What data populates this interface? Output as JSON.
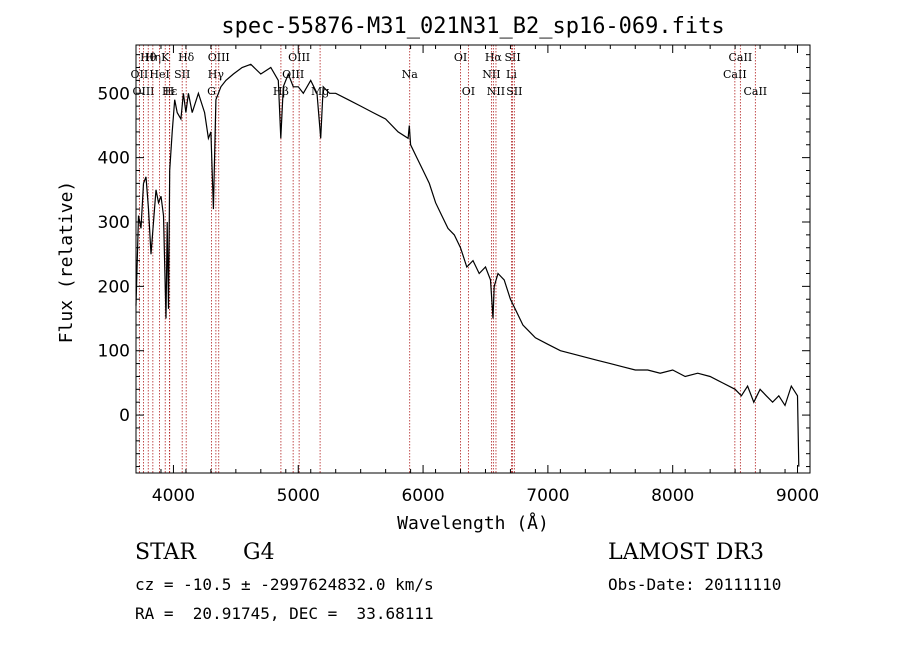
{
  "chart_data": {
    "type": "line",
    "title": "spec-55876-M31_021N31_B2_sp16-069.fits",
    "xlabel": "Wavelength (Å)",
    "ylabel": "Flux (relative)",
    "xlim": [
      3700,
      9100
    ],
    "ylim": [
      -90,
      575
    ],
    "xticks": [
      4000,
      5000,
      6000,
      7000,
      8000,
      9000
    ],
    "yticks": [
      0,
      100,
      200,
      300,
      400,
      500
    ],
    "grid": false,
    "line_color": "#000000",
    "marker_color": "#b22222",
    "series": [
      {
        "x": [
          3700,
          3720,
          3740,
          3760,
          3780,
          3800,
          3820,
          3840,
          3860,
          3880,
          3900,
          3920,
          3940,
          3950,
          3960,
          3970,
          3990,
          4010,
          4030,
          4060,
          4080,
          4100,
          4120,
          4150,
          4200,
          4250,
          4280,
          4300,
          4320,
          4340,
          4360,
          4380,
          4420,
          4480,
          4550,
          4620,
          4700,
          4780,
          4840,
          4860,
          4880,
          4920,
          4960,
          5000,
          5040,
          5100,
          5150,
          5180,
          5200,
          5250,
          5300,
          5400,
          5500,
          5600,
          5700,
          5800,
          5880,
          5890,
          5900,
          5950,
          6000,
          6050,
          6100,
          6150,
          6200,
          6250,
          6300,
          6350,
          6400,
          6450,
          6500,
          6540,
          6560,
          6570,
          6600,
          6650,
          6700,
          6750,
          6800,
          6850,
          6900,
          7000,
          7100,
          7200,
          7300,
          7400,
          7500,
          7600,
          7700,
          7800,
          7900,
          8000,
          8100,
          8200,
          8300,
          8400,
          8500,
          8550,
          8600,
          8650,
          8700,
          8750,
          8800,
          8850,
          8900,
          8950,
          9000,
          9010
        ],
        "y": [
          170,
          310,
          290,
          360,
          370,
          320,
          250,
          300,
          350,
          330,
          340,
          310,
          150,
          300,
          165,
          380,
          440,
          490,
          470,
          460,
          500,
          470,
          500,
          470,
          500,
          470,
          430,
          440,
          320,
          490,
          500,
          510,
          520,
          530,
          540,
          545,
          530,
          540,
          520,
          430,
          510,
          530,
          510,
          510,
          500,
          520,
          500,
          430,
          510,
          500,
          500,
          490,
          480,
          470,
          460,
          440,
          430,
          450,
          420,
          400,
          380,
          360,
          330,
          310,
          290,
          280,
          260,
          230,
          240,
          220,
          230,
          210,
          150,
          200,
          220,
          210,
          180,
          160,
          140,
          130,
          120,
          110,
          100,
          95,
          90,
          85,
          80,
          75,
          70,
          70,
          65,
          70,
          60,
          65,
          60,
          50,
          40,
          30,
          45,
          20,
          40,
          30,
          20,
          30,
          15,
          45,
          30,
          -80
        ]
      }
    ],
    "line_markers": [
      {
        "label": "Hθ",
        "x": 3798,
        "row": 1
      },
      {
        "label": "OII",
        "x": 3727,
        "row": 2
      },
      {
        "label": "OIII",
        "x": 3760,
        "row": 3
      },
      {
        "label": "Hη",
        "x": 3835,
        "row": 1
      },
      {
        "label": "K",
        "x": 3934,
        "row": 1
      },
      {
        "label": "HeI",
        "x": 3889,
        "row": 2
      },
      {
        "label": "SII",
        "x": 4070,
        "row": 2
      },
      {
        "label": "Hε",
        "x": 3970,
        "row": 3
      },
      {
        "label": "H",
        "x": 3968,
        "row": 3
      },
      {
        "label": "Hδ",
        "x": 4102,
        "row": 1
      },
      {
        "label": "OIII",
        "x": 4363,
        "row": 1
      },
      {
        "label": "Hγ",
        "x": 4340,
        "row": 2
      },
      {
        "label": "G",
        "x": 4305,
        "row": 3
      },
      {
        "label": "OIII",
        "x": 5007,
        "row": 1
      },
      {
        "label": "OIII",
        "x": 4959,
        "row": 2
      },
      {
        "label": "Hβ",
        "x": 4861,
        "row": 3
      },
      {
        "label": "Mg",
        "x": 5175,
        "row": 3
      },
      {
        "label": "Na",
        "x": 5893,
        "row": 2
      },
      {
        "label": "OI",
        "x": 6300,
        "row": 1
      },
      {
        "label": "OI",
        "x": 6363,
        "row": 3
      },
      {
        "label": "Hα",
        "x": 6563,
        "row": 1
      },
      {
        "label": "SII",
        "x": 6717,
        "row": 1
      },
      {
        "label": "NII",
        "x": 6548,
        "row": 2
      },
      {
        "label": "Li",
        "x": 6708,
        "row": 2
      },
      {
        "label": "NII",
        "x": 6584,
        "row": 3
      },
      {
        "label": "SII",
        "x": 6731,
        "row": 3
      },
      {
        "label": "CaII",
        "x": 8542,
        "row": 1
      },
      {
        "label": "CaII",
        "x": 8498,
        "row": 2
      },
      {
        "label": "CaII",
        "x": 8662,
        "row": 3
      }
    ]
  },
  "info": {
    "object_class": "STAR",
    "subclass": "G4",
    "survey": "LAMOST DR3",
    "cz_line": "cz = -10.5 ± -2997624832.0 km/s",
    "obs_date": "Obs-Date: 20111110",
    "coords": "RA =  20.91745, DEC =  33.68111"
  }
}
